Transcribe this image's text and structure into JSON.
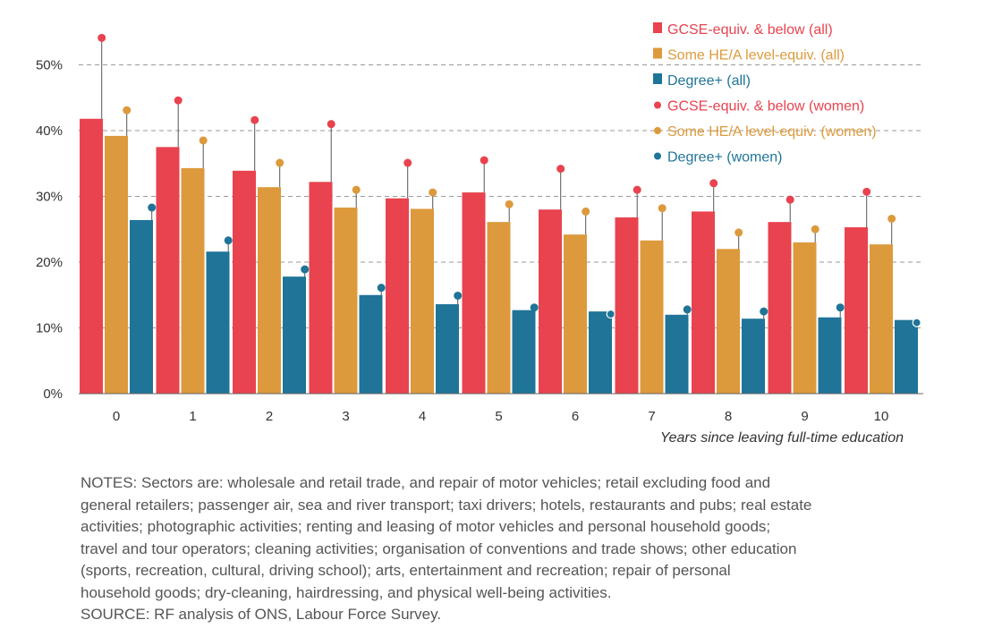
{
  "chart_data": {
    "type": "bar",
    "title": "",
    "xlabel": "Years since leaving full-time education",
    "ylabel": "",
    "categories": [
      "0",
      "1",
      "2",
      "3",
      "4",
      "5",
      "6",
      "7",
      "8",
      "9",
      "10"
    ],
    "ylim": [
      0,
      55
    ],
    "yticks": [
      0,
      10,
      20,
      30,
      40,
      50
    ],
    "ytick_labels": [
      "0%",
      "10%",
      "20%",
      "30%",
      "40%",
      "50%"
    ],
    "grid": "horizontal dashed",
    "legend_position": "top-right",
    "bar_series": [
      {
        "name": "GCSE-equiv. & below (all)",
        "color": "#e8434f",
        "values": [
          41.8,
          37.5,
          33.9,
          32.2,
          29.7,
          30.6,
          28.0,
          26.8,
          27.7,
          26.1,
          25.3
        ]
      },
      {
        "name": "Some HE/A level-equiv. (all)",
        "color": "#dc9a3c",
        "values": [
          39.2,
          34.3,
          31.4,
          28.3,
          28.1,
          26.1,
          24.2,
          23.3,
          22.0,
          23.0,
          22.7
        ]
      },
      {
        "name": "Degree+  (all)",
        "color": "#1f7498",
        "values": [
          26.4,
          21.6,
          17.8,
          15.0,
          13.6,
          12.7,
          12.5,
          12.0,
          11.4,
          11.6,
          11.2
        ]
      }
    ],
    "point_series": [
      {
        "name": "GCSE-equiv. & below (women)",
        "color": "#e8434f",
        "values": [
          54.1,
          44.6,
          41.6,
          41.0,
          35.1,
          35.5,
          34.2,
          31.0,
          32.0,
          29.5,
          30.7
        ]
      },
      {
        "name": "Some HE/A level-equiv. (women)",
        "color": "#dc9a3c",
        "values": [
          43.1,
          38.5,
          35.1,
          31.0,
          30.6,
          28.8,
          27.7,
          28.2,
          24.5,
          25.0,
          26.6
        ]
      },
      {
        "name": "Degree+  (women)",
        "color": "#1f7498",
        "values": [
          28.3,
          23.3,
          18.9,
          16.1,
          14.9,
          13.1,
          12.1,
          12.8,
          12.5,
          13.1,
          10.8
        ]
      }
    ]
  },
  "notes": [
    "NOTES: Sectors are: wholesale and retail trade, and repair of motor vehicles; retail excluding food and",
    "general retailers; passenger air, sea and river transport; taxi drivers; hotels, restaurants and pubs; real estate",
    "activities; photographic activities; renting and leasing of motor vehicles and personal household goods;",
    "travel and tour operators; cleaning activities; organisation of conventions and trade shows; other education",
    "(sports, recreation, cultural, driving school); arts, entertainment and recreation; repair of personal",
    "household goods; dry-cleaning, hairdressing, and physical well-being activities.",
    "SOURCE: RF analysis of ONS, Labour Force Survey."
  ]
}
